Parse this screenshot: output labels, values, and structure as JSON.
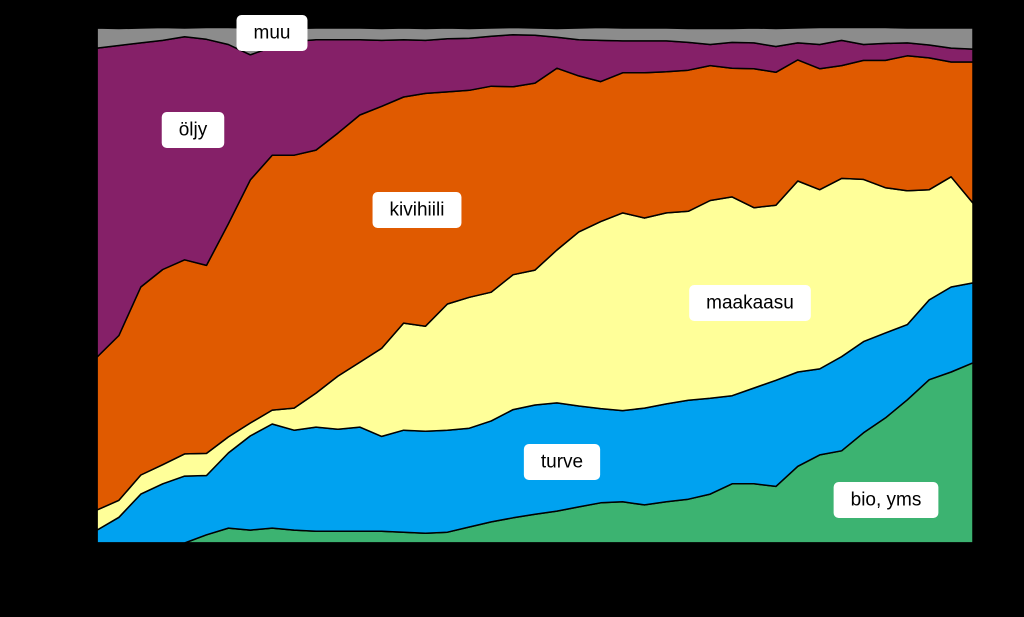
{
  "chart_data": {
    "type": "stacked-area",
    "categories": [
      null,
      null,
      null,
      null,
      null,
      null,
      null,
      null,
      null,
      null,
      null,
      null,
      null,
      null,
      null,
      null,
      null,
      null,
      null,
      null,
      null,
      null,
      null,
      null,
      null,
      null,
      null,
      null,
      null,
      null,
      null,
      null,
      null,
      null,
      null,
      null,
      null,
      null,
      null,
      null,
      null
    ],
    "ylim": [
      0,
      100
    ],
    "series": [
      {
        "name": "bio, yms",
        "color": "#3cb371",
        "values": [
          0,
          0,
          0,
          0,
          0,
          1.6,
          2.9,
          2.5,
          2.9,
          2.5,
          2.3,
          2.3,
          2.3,
          2.3,
          2.1,
          1.9,
          2.1,
          3.1,
          4.1,
          4.9,
          5.6,
          6.2,
          7.0,
          7.8,
          8.0,
          7.4,
          8.0,
          8.5,
          9.5,
          11.5,
          11.5,
          11.0,
          14.9,
          17.1,
          17.9,
          21.4,
          24.3,
          27.8,
          31.7,
          33.2,
          35.0
        ]
      },
      {
        "name": "turve",
        "color": "#00a2f0",
        "values": [
          2.5,
          5.0,
          9.5,
          11.5,
          13.0,
          11.5,
          14.6,
          18.3,
          20.2,
          19.4,
          20.2,
          19.8,
          20.2,
          18.4,
          19.8,
          19.8,
          19.8,
          19.2,
          19.6,
          21.0,
          21.2,
          21.0,
          19.6,
          18.3,
          17.7,
          18.8,
          19.0,
          19.2,
          18.6,
          17.1,
          18.6,
          20.6,
          18.3,
          16.7,
          18.3,
          17.7,
          16.5,
          14.6,
          15.5,
          16.5,
          15.5
        ]
      },
      {
        "name": "maakaasu",
        "color": "#ffff99",
        "values": [
          3.9,
          3.3,
          3.7,
          3.7,
          4.3,
          4.3,
          3.1,
          2.5,
          2.7,
          4.3,
          6.6,
          10.3,
          12.6,
          17.1,
          20.8,
          20.4,
          24.5,
          25.4,
          25.0,
          26.2,
          26.2,
          29.7,
          33.8,
          36.3,
          38.4,
          36.9,
          37.1,
          36.7,
          38.4,
          38.6,
          35.0,
          34.0,
          37.1,
          34.8,
          34.6,
          31.5,
          28.2,
          26.0,
          21.4,
          21.4,
          15.5
        ]
      },
      {
        "name": "kivihiili",
        "color": "#e05a00",
        "values": [
          29.7,
          32.0,
          36.5,
          37.9,
          37.7,
          36.5,
          41.4,
          47.2,
          49.5,
          49.1,
          47.2,
          47.2,
          48.0,
          47.0,
          43.9,
          45.2,
          41.2,
          40.2,
          40.0,
          36.5,
          36.3,
          35.3,
          30.3,
          27.2,
          27.2,
          28.2,
          27.4,
          27.4,
          26.2,
          25.0,
          27.0,
          25.8,
          23.5,
          23.5,
          21.9,
          23.1,
          24.7,
          26.2,
          25.6,
          22.3,
          27.4
        ]
      },
      {
        "name": "öljy",
        "color": "#852068",
        "values": [
          60.0,
          56.3,
          47.4,
          44.5,
          43.3,
          43.9,
          34.8,
          24.3,
          21.0,
          22.1,
          21.4,
          18.1,
          14.6,
          12.8,
          11.1,
          10.3,
          10.3,
          10.1,
          9.7,
          10.1,
          9.3,
          6.0,
          7.0,
          8.0,
          6.2,
          6.2,
          6.0,
          5.4,
          4.1,
          5.0,
          5.0,
          5.0,
          3.3,
          4.7,
          4.9,
          3.1,
          3.3,
          2.5,
          2.5,
          2.7,
          2.5
        ]
      },
      {
        "name": "muu",
        "color": "#8c8c8c",
        "values": [
          3.9,
          3.3,
          2.9,
          2.5,
          1.7,
          2.3,
          3.3,
          5.2,
          3.7,
          2.5,
          2.3,
          2.3,
          2.3,
          2.3,
          2.3,
          2.3,
          2.1,
          1.9,
          1.6,
          1.4,
          1.4,
          1.7,
          2.3,
          2.5,
          2.5,
          2.5,
          2.5,
          2.7,
          3.1,
          2.7,
          2.9,
          3.5,
          2.9,
          3.3,
          2.5,
          3.3,
          3.1,
          2.9,
          3.3,
          3.9,
          4.1
        ]
      }
    ]
  }
}
